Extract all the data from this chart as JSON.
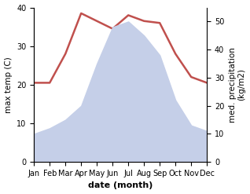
{
  "months": [
    "Jan",
    "Feb",
    "Mar",
    "Apr",
    "May",
    "Jun",
    "Jul",
    "Aug",
    "Sep",
    "Oct",
    "Nov",
    "Dec"
  ],
  "month_x": [
    1,
    2,
    3,
    4,
    5,
    6,
    7,
    8,
    9,
    10,
    11,
    12
  ],
  "temperature": [
    20.5,
    20.5,
    28,
    38.5,
    36.5,
    34.5,
    38,
    36.5,
    36,
    28,
    22,
    20.5
  ],
  "precipitation": [
    10,
    12,
    15,
    20,
    35,
    48,
    50,
    45,
    38,
    22,
    13,
    11
  ],
  "temp_color": "#c0504d",
  "precip_fill_color": "#c5cfe8",
  "ylabel_left": "max temp (C)",
  "ylabel_right": "med. precipitation\n(kg/m2)",
  "xlabel": "date (month)",
  "ylim_left": [
    0,
    40
  ],
  "ylim_right": [
    0,
    55
  ],
  "yticks_left": [
    0,
    10,
    20,
    30,
    40
  ],
  "yticks_right": [
    0,
    10,
    20,
    30,
    40,
    50
  ],
  "bg_color": "#ffffff",
  "temp_linewidth": 1.8,
  "xlabel_fontsize": 8,
  "ylabel_fontsize": 7.5,
  "tick_fontsize": 7
}
